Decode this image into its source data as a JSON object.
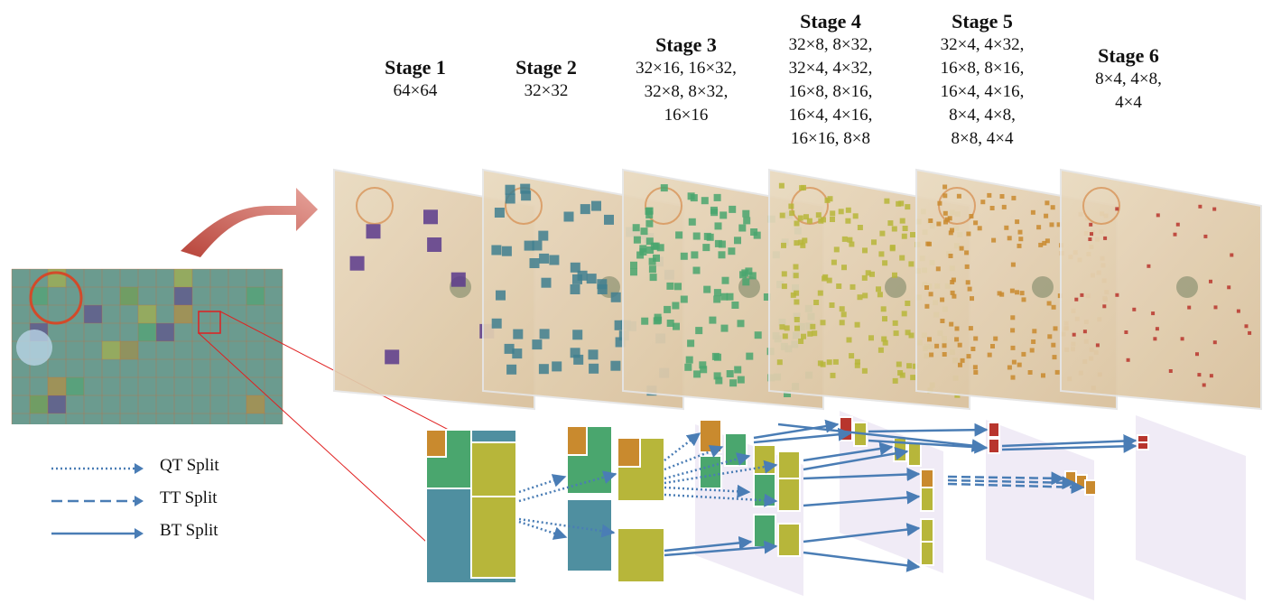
{
  "stages": [
    {
      "title": "Stage 1",
      "sizes": [
        "64×64"
      ]
    },
    {
      "title": "Stage 2",
      "sizes": [
        "32×32"
      ]
    },
    {
      "title": "Stage 3",
      "sizes": [
        "32×16, 16×32,",
        "32×8, 8×32,",
        "16×16"
      ]
    },
    {
      "title": "Stage 4",
      "sizes": [
        "32×8, 8×32,",
        "32×4, 4×32,",
        "16×8, 8×16,",
        "16×4, 4×16,",
        "16×16, 8×8"
      ]
    },
    {
      "title": "Stage 5",
      "sizes": [
        "32×4, 4×32,",
        "16×8, 8×16,",
        "16×4, 4×16,",
        "8×4, 4×8,",
        "8×8, 4×4"
      ]
    },
    {
      "title": "Stage 6",
      "sizes": [
        "8×4, 4×8,",
        "4×4"
      ]
    }
  ],
  "legend": {
    "qt": "QT Split",
    "tt": "TT Split",
    "bt": "BT Split"
  },
  "colors": {
    "stage1": "#5b3a8c",
    "stage2": "#3f7f8f",
    "stage3": "#4aa66e",
    "stage4": "#b7b63a",
    "stage5": "#c98a2e",
    "stage6": "#b8352d",
    "arrow": "#4a7db5",
    "red_arrow": "#c96a62",
    "zoom_line": "#e02020"
  }
}
